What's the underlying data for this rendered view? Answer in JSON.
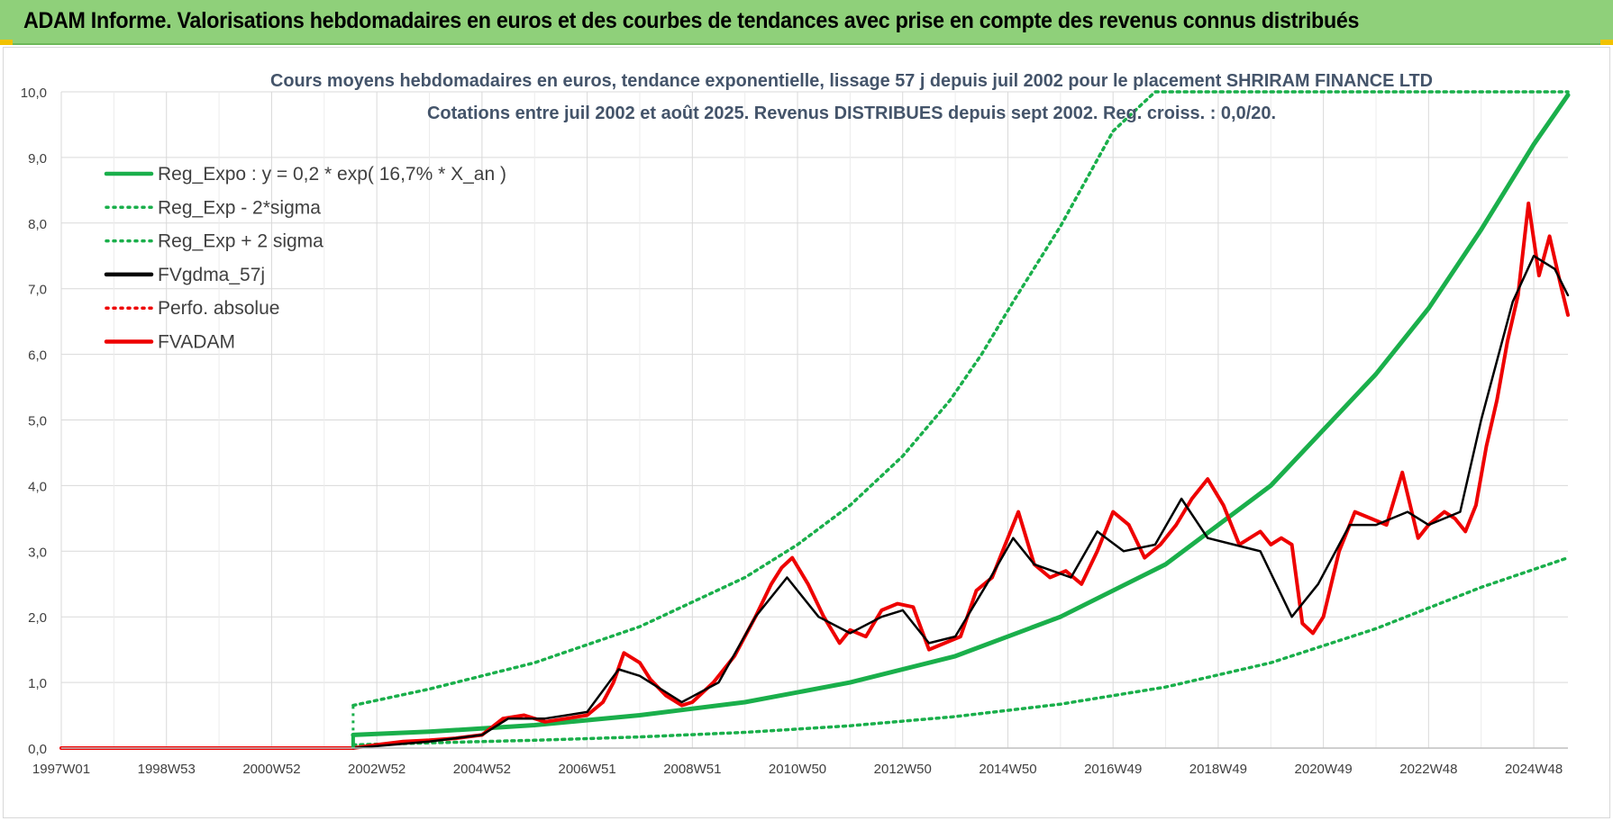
{
  "header": {
    "title": "ADAM Informe. Valorisations hebdomadaires en euros et des courbes de tendances avec prise en compte des revenus connus distribués"
  },
  "colors": {
    "banner": "#8fd07a",
    "green": "#1aaf4b",
    "red": "#ee0000",
    "black": "#000000",
    "grid": "#d9d9d9"
  },
  "chart_data": {
    "type": "line",
    "title": "Cours moyens hebdomadaires en euros, tendance exponentielle, lissage 57 j depuis juil 2002 pour le placement SHRIRAM FINANCE LTD",
    "subtitle": "Cotations entre juil 2002 et août 2025. Revenus DISTRIBUES depuis sept 2002. Reg. croiss. : 0,0/20.",
    "xlabel": "",
    "ylabel": "",
    "x_range": [
      1997.0,
      2025.65
    ],
    "ylim": [
      0,
      10
    ],
    "y_ticks": [
      "0,0",
      "1,0",
      "2,0",
      "3,0",
      "4,0",
      "5,0",
      "6,0",
      "7,0",
      "8,0",
      "9,0",
      "10,0"
    ],
    "x_tick_labels": [
      "1997W01",
      "1998W53",
      "2000W52",
      "2002W52",
      "2004W52",
      "2006W51",
      "2008W51",
      "2010W50",
      "2012W50",
      "2014W50",
      "2016W49",
      "2018W49",
      "2020W49",
      "2022W48",
      "2024W48"
    ],
    "x_tick_positions": [
      1997.0,
      1999.0,
      2001.0,
      2003.0,
      2005.0,
      2007.0,
      2009.0,
      2011.0,
      2013.0,
      2015.0,
      2017.0,
      2019.0,
      2021.0,
      2023.0,
      2025.0
    ],
    "grid": true,
    "legend_position": "top-left",
    "legend": [
      {
        "label": "Reg_Expo : y = 0,2 * exp( 16,7% *  X_an )",
        "color": "#1aaf4b",
        "style": "solid"
      },
      {
        "label": "Reg_Exp - 2*sigma",
        "color": "#1aaf4b",
        "style": "dotted"
      },
      {
        "label": "Reg_Exp + 2 sigma",
        "color": "#1aaf4b",
        "style": "dotted"
      },
      {
        "label": "FVgdma_57j",
        "color": "#000000",
        "style": "solid"
      },
      {
        "label": "Perfo. absolue",
        "color": "#ee0000",
        "style": "dotted"
      },
      {
        "label": "FVADAM",
        "color": "#ee0000",
        "style": "solid"
      }
    ],
    "series": [
      {
        "name": "Reg_Expo : y = 0,2 * exp( 16,7% *  X_an )",
        "style": "solid",
        "color": "#1aaf4b",
        "x": [
          2002.55,
          2004.0,
          2006.0,
          2008.0,
          2010.0,
          2012.0,
          2014.0,
          2016.0,
          2018.0,
          2020.0,
          2022.0,
          2023.0,
          2024.0,
          2025.0,
          2025.65
        ],
        "y": [
          0.2,
          0.25,
          0.35,
          0.5,
          0.7,
          1.0,
          1.4,
          2.0,
          2.8,
          4.0,
          5.7,
          6.7,
          7.9,
          9.2,
          9.95
        ]
      },
      {
        "name": "Reg_Exp + 2 sigma",
        "style": "dotted",
        "color": "#1aaf4b",
        "x": [
          2002.55,
          2004.0,
          2006.0,
          2008.0,
          2010.0,
          2011.0,
          2012.0,
          2013.0,
          2013.9,
          2014.5,
          2015.1
        ],
        "y": [
          0.65,
          0.9,
          1.3,
          1.85,
          2.6,
          3.1,
          3.7,
          4.45,
          5.3,
          6.0,
          6.8
        ],
        "x2": [
          2015.1,
          2016.0,
          2017.0,
          2017.8,
          2018.7,
          2020.0,
          2022.0,
          2024.0,
          2025.65
        ],
        "y2": [
          6.8,
          7.95,
          9.4,
          10.0,
          10.0,
          10.0,
          10.0,
          10.0,
          10.0
        ]
      },
      {
        "name": "Reg_Exp - 2*sigma",
        "style": "dotted",
        "color": "#1aaf4b",
        "x": [
          2002.55,
          2004.0,
          2006.0,
          2008.0,
          2010.0,
          2012.0,
          2014.0,
          2016.0,
          2018.0,
          2020.0,
          2022.0,
          2024.0,
          2025.65
        ],
        "y": [
          0.05,
          0.08,
          0.12,
          0.17,
          0.24,
          0.34,
          0.48,
          0.67,
          0.93,
          1.3,
          1.82,
          2.45,
          2.9
        ]
      },
      {
        "name": "FVADAM",
        "style": "solid",
        "color": "#ee0000",
        "x": [
          1997.0,
          2002.55,
          2003.0,
          2003.5,
          2004.0,
          2004.5,
          2005.0,
          2005.4,
          2005.8,
          2006.2,
          2006.6,
          2007.0,
          2007.3,
          2007.5,
          2007.7,
          2008.0,
          2008.2,
          2008.5,
          2008.8,
          2009.0,
          2009.4,
          2009.8,
          2010.2,
          2010.5,
          2010.7,
          2010.9,
          2011.2,
          2011.5,
          2011.8,
          2012.0,
          2012.3,
          2012.6,
          2012.9,
          2013.2,
          2013.5,
          2013.8,
          2014.1,
          2014.4,
          2014.7,
          2014.9,
          2015.2,
          2015.5,
          2015.8,
          2016.1,
          2016.4,
          2016.7,
          2017.0,
          2017.3,
          2017.6,
          2017.9,
          2018.2,
          2018.5,
          2018.8,
          2019.1,
          2019.4,
          2019.6,
          2019.8,
          2020.0,
          2020.2,
          2020.4,
          2020.6,
          2020.8,
          2021.0,
          2021.3,
          2021.6,
          2021.9,
          2022.2,
          2022.5,
          2022.8,
          2023.0,
          2023.3,
          2023.5,
          2023.7,
          2023.9,
          2024.1,
          2024.3,
          2024.5,
          2024.7,
          2024.9,
          2025.1,
          2025.3,
          2025.5,
          2025.65
        ],
        "y": [
          0.0,
          0.0,
          0.05,
          0.1,
          0.12,
          0.15,
          0.2,
          0.45,
          0.5,
          0.4,
          0.45,
          0.5,
          0.7,
          1.0,
          1.45,
          1.3,
          1.05,
          0.8,
          0.65,
          0.7,
          1.0,
          1.4,
          2.0,
          2.5,
          2.75,
          2.9,
          2.5,
          2.0,
          1.6,
          1.8,
          1.7,
          2.1,
          2.2,
          2.15,
          1.5,
          1.6,
          1.7,
          2.4,
          2.6,
          3.0,
          3.6,
          2.8,
          2.6,
          2.7,
          2.5,
          3.0,
          3.6,
          3.4,
          2.9,
          3.1,
          3.4,
          3.8,
          4.1,
          3.7,
          3.1,
          3.2,
          3.3,
          3.1,
          3.2,
          3.1,
          1.9,
          1.75,
          2.0,
          3.0,
          3.6,
          3.5,
          3.4,
          4.2,
          3.2,
          3.4,
          3.6,
          3.5,
          3.3,
          3.7,
          4.6,
          5.3,
          6.2,
          6.9,
          8.3,
          7.2,
          7.8,
          7.1,
          6.6
        ]
      },
      {
        "name": "FVgdma_57j",
        "style": "solid",
        "color": "#000000",
        "x": [
          2002.55,
          2004.0,
          2005.0,
          2005.5,
          2006.2,
          2007.0,
          2007.6,
          2008.0,
          2008.8,
          2009.5,
          2010.2,
          2010.8,
          2011.4,
          2012.0,
          2012.6,
          2013.0,
          2013.5,
          2014.0,
          2014.6,
          2015.1,
          2015.5,
          2016.2,
          2016.7,
          2017.2,
          2017.8,
          2018.3,
          2018.8,
          2019.3,
          2019.8,
          2020.4,
          2020.9,
          2021.5,
          2022.0,
          2022.6,
          2023.0,
          2023.6,
          2024.0,
          2024.6,
          2025.0,
          2025.4,
          2025.65
        ],
        "y": [
          0.0,
          0.1,
          0.2,
          0.45,
          0.45,
          0.55,
          1.2,
          1.1,
          0.7,
          1.0,
          2.0,
          2.6,
          2.0,
          1.75,
          2.0,
          2.1,
          1.6,
          1.7,
          2.5,
          3.2,
          2.8,
          2.6,
          3.3,
          3.0,
          3.1,
          3.8,
          3.2,
          3.1,
          3.0,
          2.0,
          2.5,
          3.4,
          3.4,
          3.6,
          3.4,
          3.6,
          5.0,
          6.8,
          7.5,
          7.3,
          6.9
        ]
      }
    ]
  }
}
